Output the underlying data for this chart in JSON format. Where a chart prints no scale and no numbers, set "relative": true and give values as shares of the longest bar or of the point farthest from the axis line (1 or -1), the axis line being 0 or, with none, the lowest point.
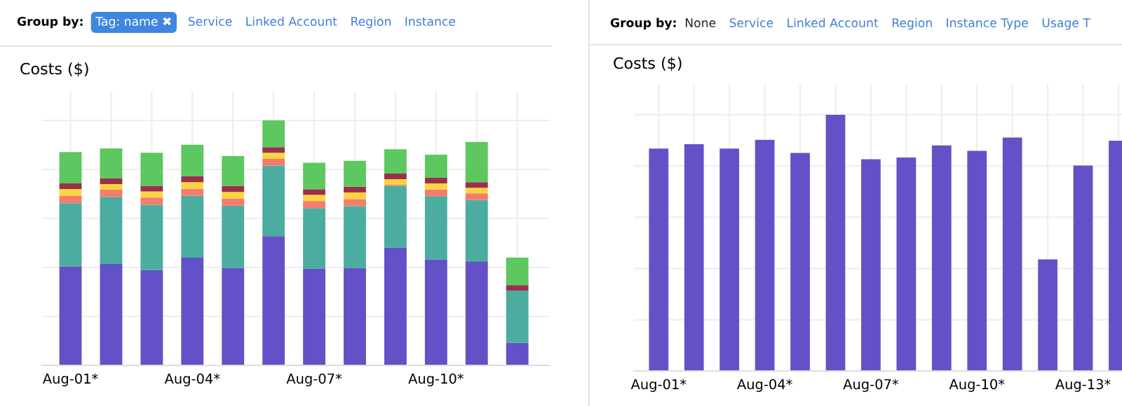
{
  "chart_data": [
    {
      "type": "bar",
      "title": "Costs ($)",
      "stacked": true,
      "relative": true,
      "grid": true,
      "legend": false,
      "annotations": [
        "Group by:",
        "Tag: name ✖",
        "Service",
        "Linked Account",
        "Region",
        "Instance"
      ],
      "categories": [
        "Aug-01*",
        null,
        null,
        "Aug-04*",
        null,
        null,
        "Aug-07*",
        null,
        null,
        "Aug-10*",
        null,
        null
      ],
      "series": [
        {
          "color": "#6351c7",
          "values": [
            0.404,
            0.414,
            0.389,
            0.44,
            0.398,
            0.528,
            0.395,
            0.398,
            0.481,
            0.432,
            0.425,
            0.092
          ]
        },
        {
          "color": "#4aad9f",
          "values": [
            0.258,
            0.274,
            0.267,
            0.252,
            0.254,
            0.288,
            0.247,
            0.252,
            0.252,
            0.259,
            0.25,
            0.213
          ]
        },
        {
          "color": "#f47c6c",
          "values": [
            0.031,
            0.029,
            0.029,
            0.029,
            0.029,
            0.027,
            0.029,
            0.029,
            0.004,
            0.027,
            0.027,
            0
          ]
        },
        {
          "color": "#fcd440",
          "values": [
            0.027,
            0.023,
            0.025,
            0.027,
            0.027,
            0.025,
            0.025,
            0.027,
            0.023,
            0.025,
            0.023,
            0
          ]
        },
        {
          "color": "#9b2f4b",
          "values": [
            0.023,
            0.023,
            0.023,
            0.025,
            0.025,
            0.023,
            0.023,
            0.023,
            0.023,
            0.023,
            0.023,
            0.023
          ]
        },
        {
          "color": "#5cc85f",
          "values": [
            0.128,
            0.123,
            0.135,
            0.128,
            0.121,
            0.109,
            0.108,
            0.106,
            0.099,
            0.094,
            0.164,
            0.112
          ]
        }
      ]
    },
    {
      "type": "bar",
      "title": "Costs ($)",
      "relative": true,
      "grid": true,
      "legend": false,
      "annotations": [
        "Group by:",
        "None",
        "Service",
        "Linked Account",
        "Region",
        "Instance Type",
        "Usage T"
      ],
      "categories": [
        "Aug-01*",
        null,
        null,
        "Aug-04*",
        null,
        null,
        "Aug-07*",
        null,
        null,
        "Aug-10*",
        null,
        null,
        "Aug-13*",
        null
      ],
      "series": [
        {
          "color": "#6351c7",
          "values": [
            0.868,
            0.885,
            0.868,
            0.902,
            0.851,
            1,
            0.826,
            0.833,
            0.88,
            0.859,
            0.911,
            0.436,
            0.802,
            0.899
          ]
        }
      ]
    }
  ]
}
